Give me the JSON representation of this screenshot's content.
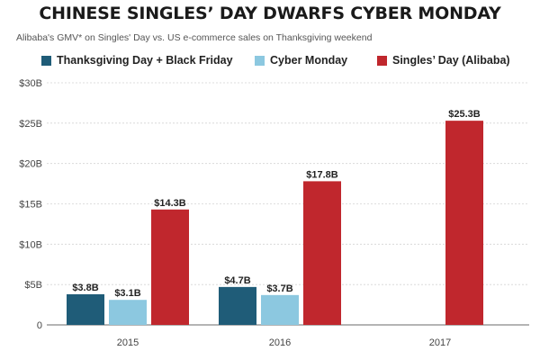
{
  "chart_data": {
    "type": "bar",
    "title": "CHINESE SINGLES’ DAY DWARFS CYBER MONDAY",
    "subtitle": "Alibaba's GMV* on Singles' Day vs. US e-commerce sales on Thanksgiving weekend",
    "categories": [
      "2015",
      "2016",
      "2017"
    ],
    "series": [
      {
        "name": "Thanksgiving Day + Black Friday",
        "color": "#1f5c78",
        "values": [
          3.8,
          4.7,
          null
        ],
        "labels": [
          "$3.8B",
          "$4.7B",
          null
        ]
      },
      {
        "name": "Cyber Monday",
        "color": "#8cc8e0",
        "values": [
          3.1,
          3.7,
          null
        ],
        "labels": [
          "$3.1B",
          "$3.7B",
          null
        ]
      },
      {
        "name": "Singles’ Day (Alibaba)",
        "color": "#c0272d",
        "values": [
          14.3,
          17.8,
          25.3
        ],
        "labels": [
          "$14.3B",
          "$17.8B",
          "$25.3B"
        ]
      }
    ],
    "yticks": [
      0,
      5,
      10,
      15,
      20,
      25,
      30
    ],
    "ytick_labels": [
      "0",
      "$5B",
      "$10B",
      "$15B",
      "$20B",
      "$25B",
      "$30B"
    ],
    "ylim": [
      0,
      30
    ],
    "xlabel": "",
    "ylabel": "",
    "grid": true,
    "legend_position": "top"
  }
}
